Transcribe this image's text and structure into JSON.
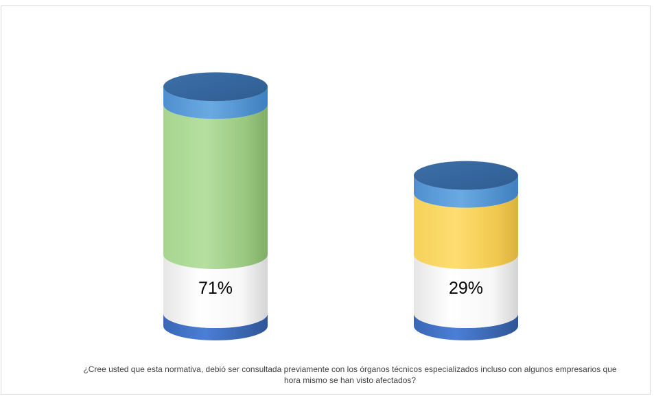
{
  "chart_data": {
    "type": "bar",
    "style": "3d-cylinder",
    "categories": [
      "",
      ""
    ],
    "series": [
      {
        "values": [
          71,
          29
        ]
      }
    ],
    "data_labels": [
      "71%",
      "29%"
    ],
    "bar_colors": [
      "#a9d18e",
      "#ffd966"
    ],
    "cap_color": "#5b9bd5",
    "base_color": "#4472c4",
    "ylim": [
      0,
      100
    ],
    "xlabel": "¿Cree usted que esta normativa, debió ser consultada previamente con los órganos técnicos especializados incluso con algunos empresarios que hora mismo se han visto afectados?",
    "grid": false,
    "legend": "none"
  }
}
